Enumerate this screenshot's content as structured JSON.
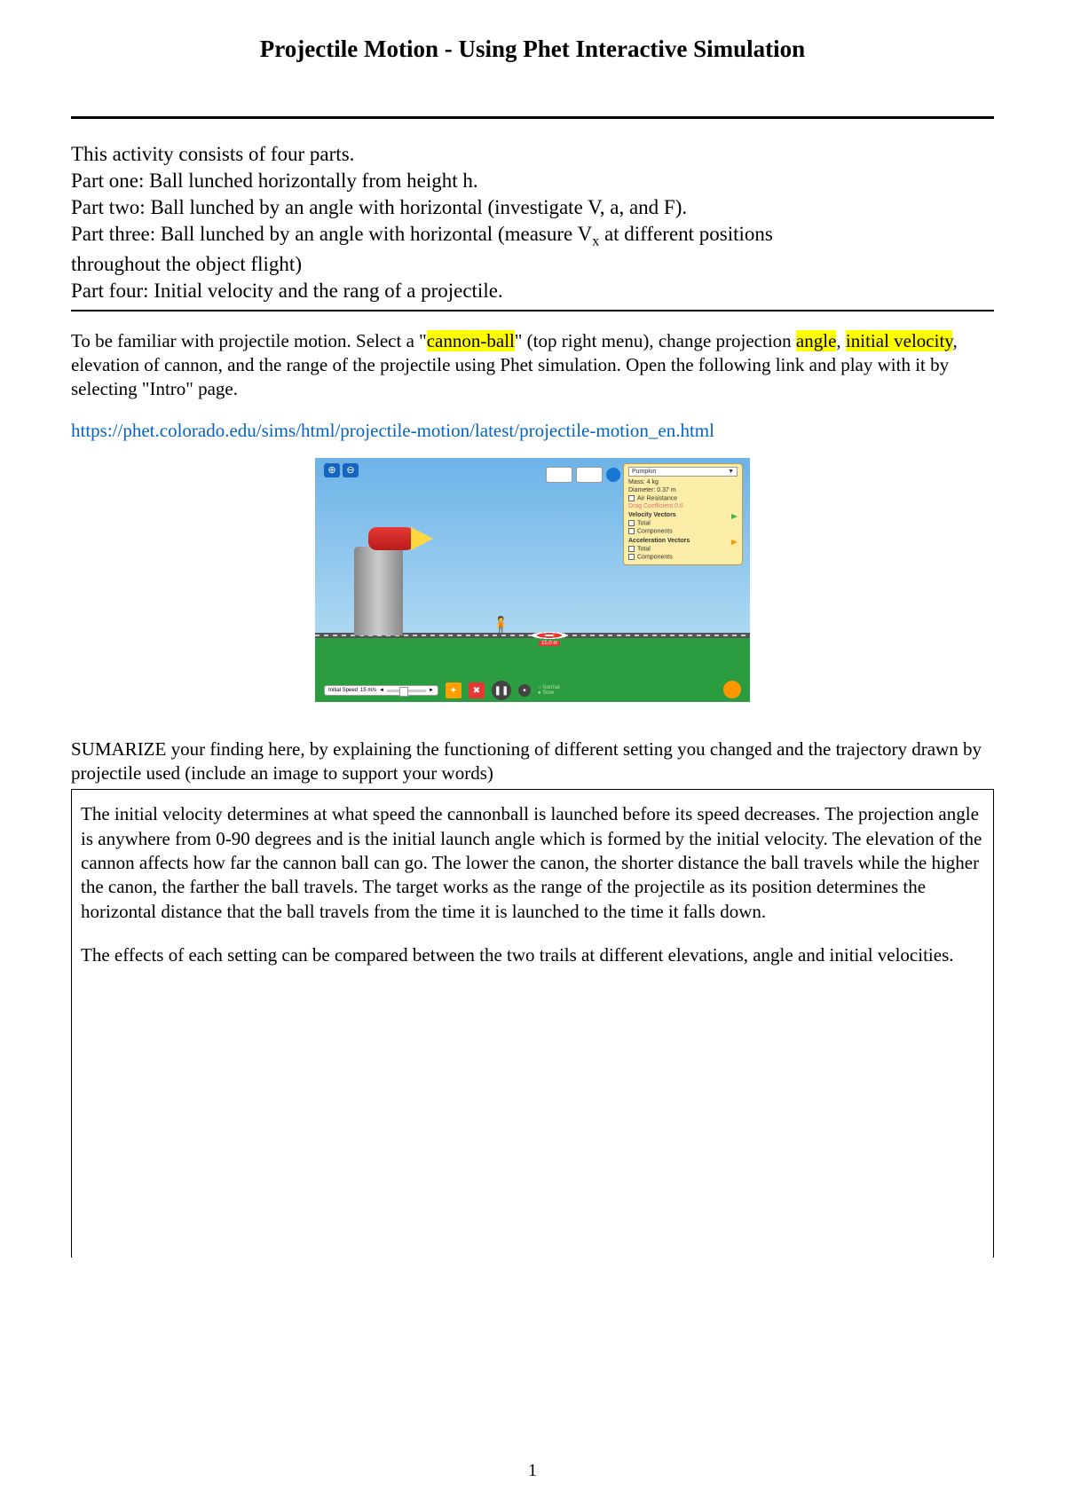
{
  "title": "Projectile Motion - Using Phet Interactive Simulation",
  "intro": {
    "line1": "This activity consists of four parts.",
    "line2": "Part one: Ball lunched horizontally from height h.",
    "line3": "Part two: Ball lunched by an angle with horizontal (investigate V, a, and F).",
    "line4a": "Part three: Ball lunched by an angle with horizontal (measure V",
    "line4sub": "x",
    "line4b": " at different positions",
    "line5": "throughout the object flight)",
    "line6": " Part four: Initial velocity and the rang of a projectile."
  },
  "familiar": {
    "p1a": "To be familiar with projectile motion. Select a \"",
    "hl1": "cannon-ball",
    "p1b": "\" (top right menu), change projection ",
    "hl2": "angle",
    "p1c": ", ",
    "hl3": "initial velocity",
    "p1d": ", elevation of cannon, and the range of the projectile using Phet simulation. Open the following link and play with it by selecting \"Intro\" page."
  },
  "link": "https://phet.colorado.edu/sims/html/projectile-motion/latest/projectile-motion_en.html",
  "sim": {
    "zoom_in": "⊕",
    "zoom_out": "⊖",
    "select_label": "Pumpkin",
    "select_arrow": "▼",
    "mass": "Mass: 4 kg",
    "diameter": "Diameter: 0.37 m",
    "air_res": "Air Resistance",
    "drag": "Drag Coefficient 0.6",
    "vel_hdr": "Velocity Vectors",
    "opt_total": "Total",
    "opt_comp": "Components",
    "acc_hdr": "Acceleration Vectors",
    "target": "15.0 m",
    "speed_label": "Initial Speed",
    "speed_val": "15 m/s",
    "arrow_l": "◄",
    "arrow_r": "►",
    "fire": "✦",
    "erase": "✖",
    "play": "❚❚",
    "step": "•",
    "radio1": "Normal",
    "radio2": "Slow",
    "person": "🧍"
  },
  "summarize": "SUMARIZE your finding here, by explaining the functioning of different setting you changed and the trajectory drawn by projectile used (include an image to support your words)",
  "answer": {
    "p1": "The initial velocity determines at what speed the cannonball is launched before its speed decreases. The projection angle is anywhere from 0-90 degrees and is the initial launch angle which is formed by the initial velocity. The elevation of the cannon affects how far the cannon ball can go. The lower the canon, the shorter distance the ball travels while the higher the canon, the farther the ball travels. The target works as the range of the projectile as its position determines the horizontal distance that the ball travels from the time it is launched to the time it falls down.",
    "p2": "The effects of each setting can be compared between the two trails at different elevations, angle and initial velocities."
  },
  "page_number": "1",
  "colors": {
    "link": "#0563c1",
    "highlight": "#ffff00",
    "sky_top": "#6db3e8",
    "sky_bot": "#aed9f2",
    "ground": "#2b9c3f",
    "panel": "#fceda8",
    "cannon_red": "#e53935",
    "cannon_flame": "#ffd740"
  }
}
